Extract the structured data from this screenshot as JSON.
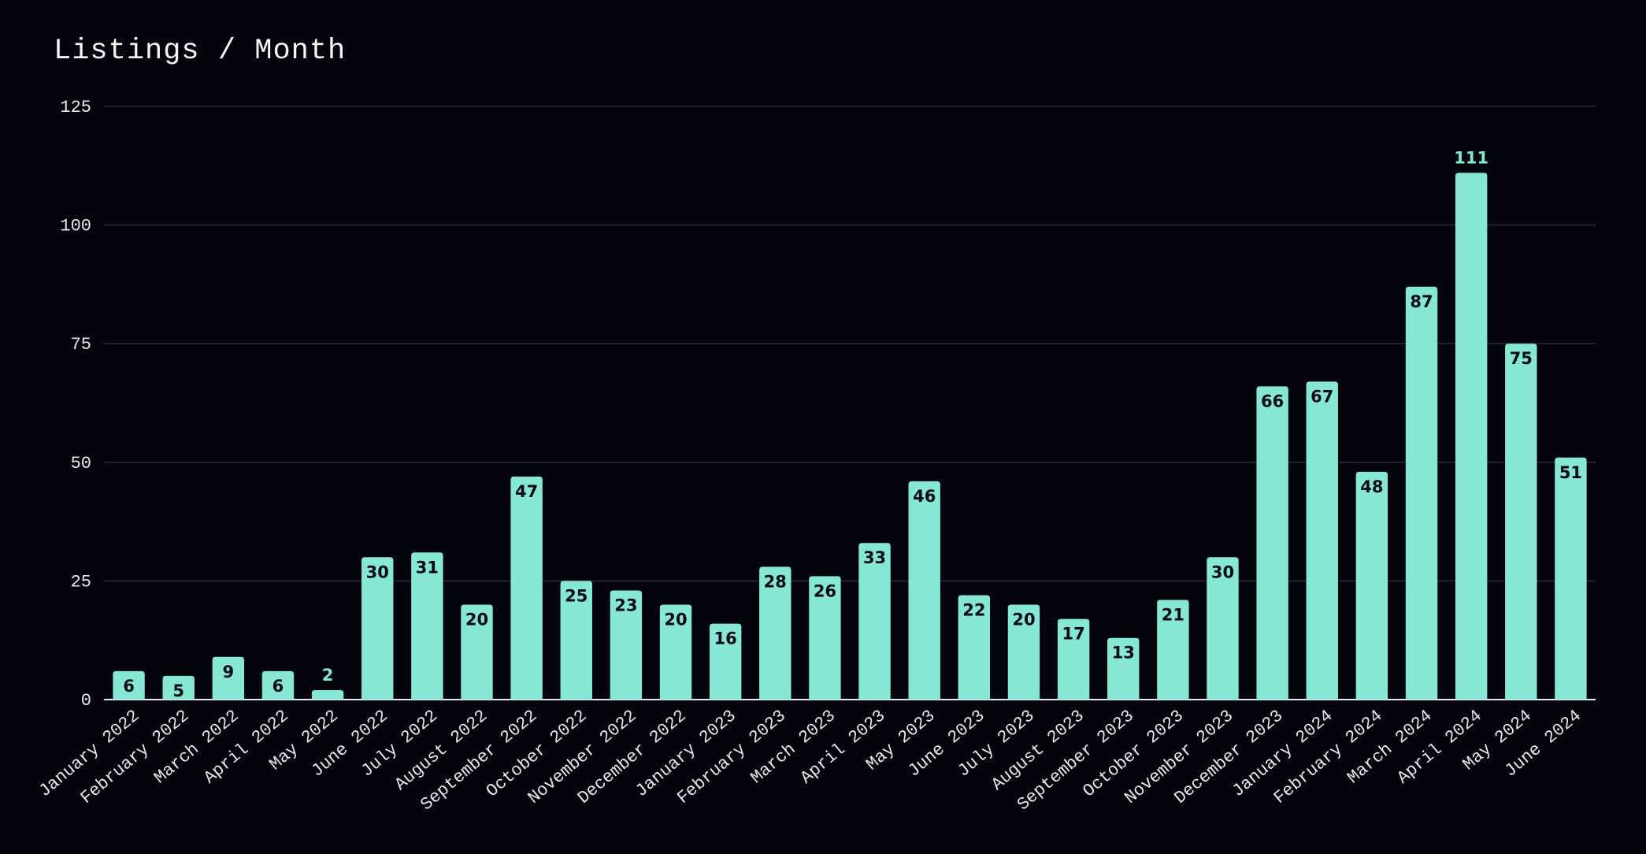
{
  "title": "Listings / Month",
  "colors": {
    "background": "#03040c",
    "bar": "#86e8d4",
    "grid": "#2a2d38",
    "axis": "#e8e8e8",
    "label_inside": "#0a0a12",
    "label_outside": "#86e8d4"
  },
  "chart_data": {
    "type": "bar",
    "title": "Listings / Month",
    "xlabel": "",
    "ylabel": "",
    "ylim": [
      0,
      125
    ],
    "yticks": [
      0,
      25,
      50,
      75,
      100,
      125
    ],
    "grid": true,
    "legend": "none",
    "categories": [
      "January 2022",
      "February 2022",
      "March 2022",
      "April 2022",
      "May 2022",
      "June 2022",
      "July 2022",
      "August 2022",
      "September 2022",
      "October 2022",
      "November 2022",
      "December 2022",
      "January 2023",
      "February 2023",
      "March 2023",
      "April 2023",
      "May 2023",
      "June 2023",
      "July 2023",
      "August 2023",
      "September 2023",
      "October 2023",
      "November 2023",
      "December 2023",
      "January 2024",
      "February 2024",
      "March 2024",
      "April 2024",
      "May 2024",
      "June 2024"
    ],
    "values": [
      6,
      5,
      9,
      6,
      2,
      30,
      31,
      20,
      47,
      25,
      23,
      20,
      16,
      28,
      26,
      33,
      46,
      22,
      20,
      17,
      13,
      21,
      30,
      66,
      67,
      48,
      87,
      111,
      75,
      51
    ]
  }
}
